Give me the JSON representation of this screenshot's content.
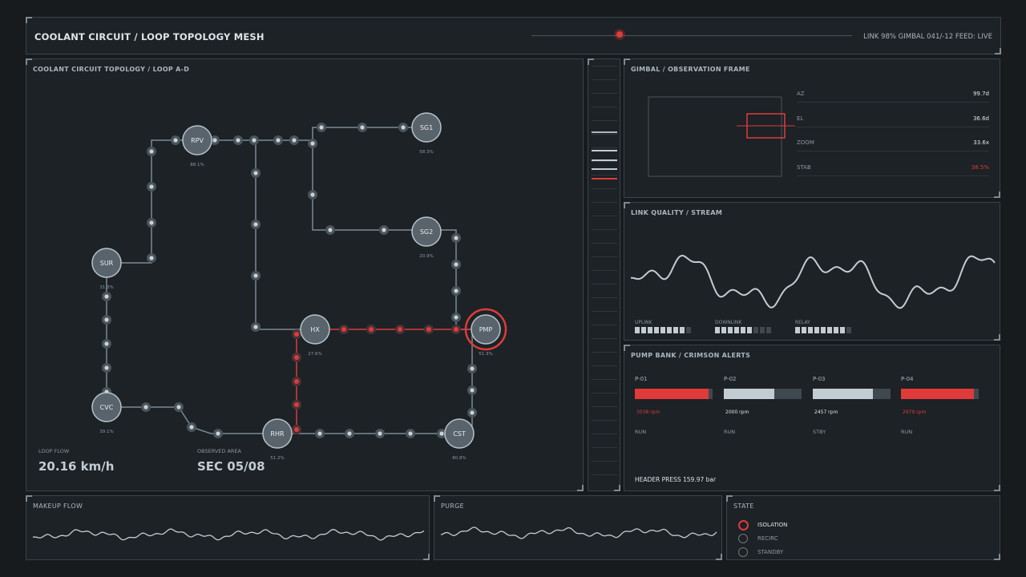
{
  "header": {
    "title": "COOLANT CIRCUIT / LOOP TOPOLOGY MESH",
    "status": "LINK 98%  GIMBAL 041/-12  FEED: LIVE",
    "slider_value": 0.27
  },
  "topology": {
    "title": "COOLANT CIRCUIT TOPOLOGY / LOOP A-D",
    "nodes": [
      {
        "id": "RPV",
        "pct": "88.1%"
      },
      {
        "id": "SG1",
        "pct": "58.3%"
      },
      {
        "id": "SG2",
        "pct": "20.9%"
      },
      {
        "id": "SUR",
        "pct": "31.3%"
      },
      {
        "id": "HX",
        "pct": "27.6%"
      },
      {
        "id": "PMP",
        "pct": "51.3%"
      },
      {
        "id": "CVC",
        "pct": "39.1%"
      },
      {
        "id": "RHR",
        "pct": "51.2%"
      },
      {
        "id": "CST",
        "pct": "80.8%"
      }
    ],
    "loop_flow_label": "LOOP FLOW",
    "loop_flow_value": "20.16 km/h",
    "observed_area_label": "OBSERVED AREA",
    "observed_area_value": "SEC 05/08"
  },
  "gimbal": {
    "title": "GIMBAL / OBSERVATION FRAME",
    "rows": [
      {
        "key": "AZ",
        "value": "99.7d"
      },
      {
        "key": "EL",
        "value": "36.6d"
      },
      {
        "key": "ZOOM",
        "value": "33.6x"
      },
      {
        "key": "STAB",
        "value": "38.5%",
        "alert": true
      }
    ]
  },
  "link_quality": {
    "title": "LINK QUALITY / STREAM",
    "meters": [
      {
        "label": "UPLINK",
        "level": 8,
        "total": 9
      },
      {
        "label": "DOWNLINK",
        "level": 6,
        "total": 9
      },
      {
        "label": "RELAY",
        "level": 8,
        "total": 9
      }
    ]
  },
  "pumps": {
    "title": "PUMP BANK / CRIMSON ALERTS",
    "items": [
      {
        "id": "P-01",
        "rpm": "3038 rpm",
        "state": "RUN",
        "level": 0.95,
        "alert": true
      },
      {
        "id": "P-02",
        "rpm": "2000 rpm",
        "state": "RUN",
        "level": 0.65,
        "alert": false
      },
      {
        "id": "P-03",
        "rpm": "2457 rpm",
        "state": "STBY",
        "level": 0.77,
        "alert": false
      },
      {
        "id": "P-04",
        "rpm": "2979 rpm",
        "state": "RUN",
        "level": 0.94,
        "alert": true
      }
    ],
    "header_press": "HEADER PRESS 159.97 bar"
  },
  "makeup_flow": {
    "title": "MAKEUP FLOW"
  },
  "purge": {
    "title": "PURGE"
  },
  "state": {
    "title": "STATE",
    "items": [
      {
        "label": "ISOLATION",
        "active": true
      },
      {
        "label": "RECIRC",
        "active": false
      },
      {
        "label": "STANDBY",
        "active": false
      }
    ]
  },
  "colors": {
    "alert": "#e03a3a",
    "line": "#c3ccd3",
    "node_fill": "#59636b"
  }
}
